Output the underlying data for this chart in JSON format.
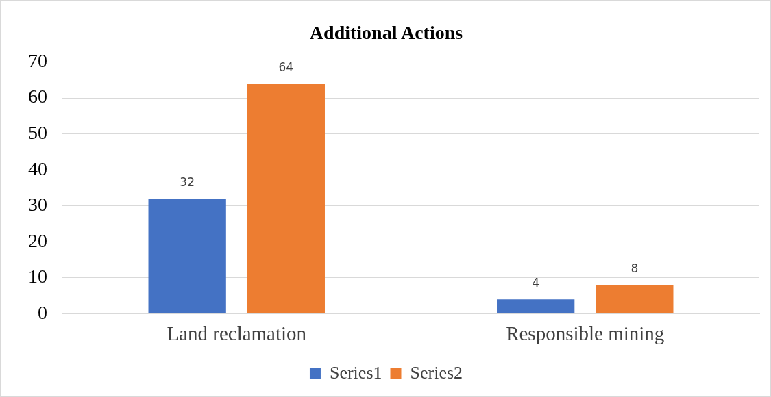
{
  "chart_data": {
    "type": "bar",
    "title": "Additional Actions",
    "categories": [
      "Land reclamation",
      "Responsible mining"
    ],
    "series": [
      {
        "name": "Series1",
        "color": "#4472c4",
        "values": [
          32,
          4
        ]
      },
      {
        "name": "Series2",
        "color": "#ed7d31",
        "values": [
          64,
          8
        ]
      }
    ],
    "ylim": [
      0,
      70
    ],
    "yticks": [
      0,
      10,
      20,
      30,
      40,
      50,
      60,
      70
    ],
    "grid": "y",
    "legend": "bottom",
    "data_labels": true
  }
}
